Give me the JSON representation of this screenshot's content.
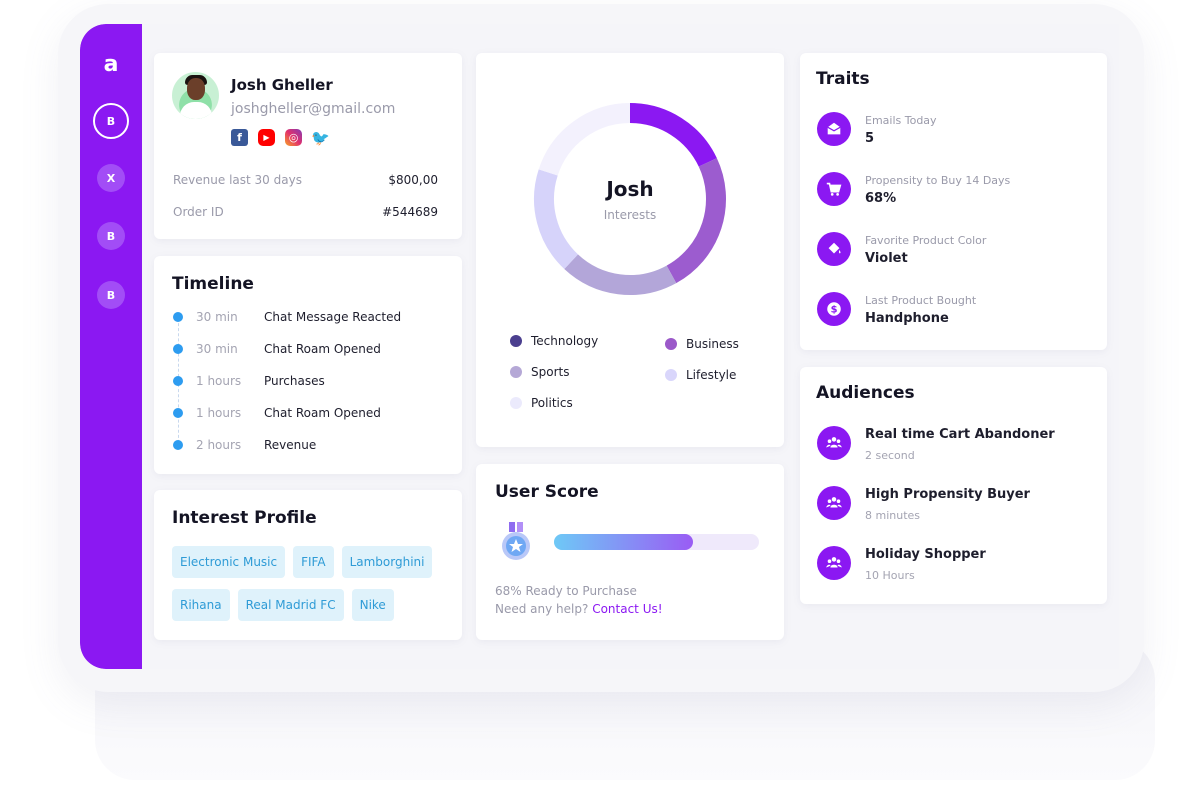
{
  "sidebar": {
    "logo": "a",
    "items": [
      {
        "label": "B",
        "active": true
      },
      {
        "label": "X",
        "active": false
      },
      {
        "label": "B",
        "active": false
      },
      {
        "label": "B",
        "active": false
      }
    ]
  },
  "profile": {
    "name": "Josh Gheller",
    "email": "joshgheller@gmail.com",
    "socials": [
      "facebook-icon",
      "youtube-icon",
      "instagram-icon",
      "twitter-icon"
    ],
    "revenue_label": "Revenue last 30 days",
    "revenue_value": "$800,00",
    "order_label": "Order ID",
    "order_value": "#544689"
  },
  "timeline": {
    "title": "Timeline",
    "items": [
      {
        "time": "30 min",
        "event": "Chat Message Reacted"
      },
      {
        "time": "30 min",
        "event": "Chat Roam Opened"
      },
      {
        "time": "1 hours",
        "event": "Purchases"
      },
      {
        "time": "1 hours",
        "event": "Chat Roam Opened"
      },
      {
        "time": "2 hours",
        "event": "Revenue"
      }
    ]
  },
  "interest_profile": {
    "title": "Interest Profile",
    "chips": [
      "Electronic Music",
      "FIFA",
      "Lamborghini",
      "Rihana",
      "Real Madrid FC",
      "Nike"
    ]
  },
  "interests": {
    "name": "Josh",
    "subtitle": "Interests",
    "legend": [
      {
        "label": "Technology",
        "color": "#4b3f8f"
      },
      {
        "label": "Business",
        "color": "#9b59c9"
      },
      {
        "label": "Sports",
        "color": "#b5a8d6"
      },
      {
        "label": "Lifestyle",
        "color": "#d9d6fb"
      },
      {
        "label": "Politics",
        "color": "#ebeafc"
      }
    ],
    "segments": [
      {
        "label": "Technology",
        "value": 18,
        "color": "#8b18f2"
      },
      {
        "label": "Business",
        "value": 24,
        "color": "#9c5ccf"
      },
      {
        "label": "Sports",
        "value": 20,
        "color": "#b3a6d9"
      },
      {
        "label": "Lifestyle",
        "value": 18,
        "color": "#d6d3fa"
      },
      {
        "label": "Politics",
        "value": 20,
        "color": "#f3f1fd"
      }
    ]
  },
  "user_score": {
    "title": "User Score",
    "percent": 68,
    "ready_text": "68% Ready to Purchase",
    "help_text": "Need any help?",
    "contact_link": "Contact Us!"
  },
  "traits": {
    "title": "Traits",
    "items": [
      {
        "label": "Emails Today",
        "value": "5",
        "icon": "mail-icon"
      },
      {
        "label": "Propensity to Buy 14 Days",
        "value": "68%",
        "icon": "cart-icon"
      },
      {
        "label": "Favorite Product Color",
        "value": "Violet",
        "icon": "paint-bucket-icon"
      },
      {
        "label": "Last Product Bought",
        "value": "Handphone",
        "icon": "dollar-icon"
      }
    ]
  },
  "audiences": {
    "title": "Audiences",
    "items": [
      {
        "name": "Real time Cart Abandoner",
        "sub": "2 second",
        "icon": "group-icon"
      },
      {
        "name": "High Propensity Buyer",
        "sub": "8 minutes",
        "icon": "group-icon"
      },
      {
        "name": "Holiday Shopper",
        "sub": "10 Hours",
        "icon": "group-icon"
      }
    ]
  },
  "colors": {
    "accent": "#8b18f2",
    "chip_bg": "#dff2fb",
    "chip_text": "#2e9bd6",
    "timeline_dot": "#2d9cf0"
  }
}
